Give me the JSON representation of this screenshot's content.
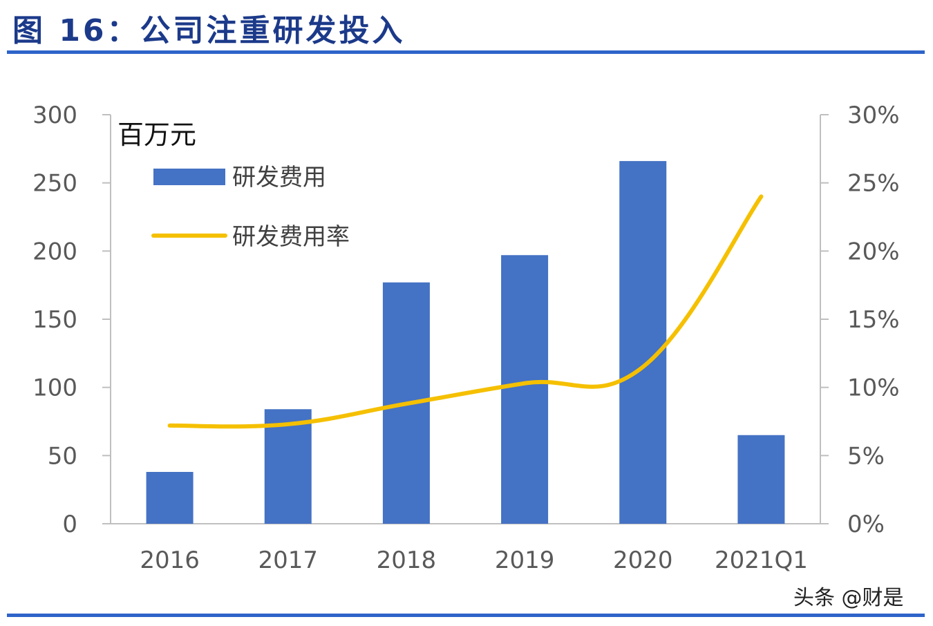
{
  "title": "图 16：公司注重研发投入",
  "watermark": "头条 @财是",
  "colors": {
    "bar": "#4472c4",
    "line": "#f5c000",
    "axis": "#bfbfbf",
    "rule": "#2e64c9",
    "title": "#1c3a8a"
  },
  "chart_data": {
    "type": "bar",
    "unit_label": "百万元",
    "categories": [
      "2016",
      "2017",
      "2018",
      "2019",
      "2020",
      "2021Q1"
    ],
    "series": [
      {
        "name": "研发费用",
        "type": "bar",
        "axis": "left",
        "values": [
          38,
          84,
          177,
          197,
          266,
          65
        ]
      },
      {
        "name": "研发费用率",
        "type": "line",
        "axis": "right",
        "values": [
          0.072,
          0.073,
          0.088,
          0.103,
          0.115,
          0.24
        ]
      }
    ],
    "y_left": {
      "min": 0,
      "max": 300,
      "ticks": [
        "0",
        "50",
        "100",
        "150",
        "200",
        "250",
        "300"
      ]
    },
    "y_right": {
      "min": 0,
      "max": 0.3,
      "ticks": [
        "0%",
        "5%",
        "10%",
        "15%",
        "20%",
        "25%",
        "30%"
      ]
    },
    "legend_position": "top-left",
    "grid": false
  }
}
